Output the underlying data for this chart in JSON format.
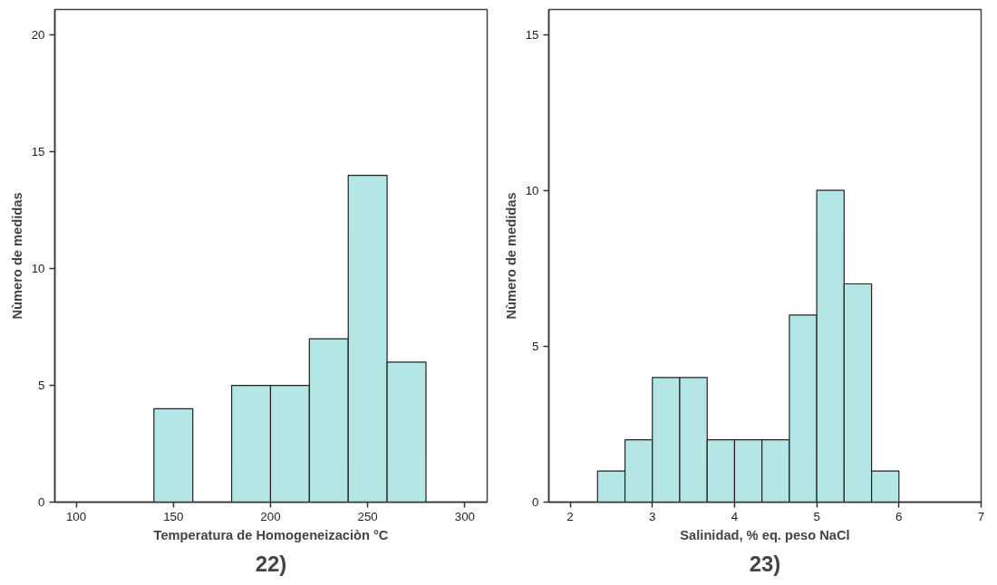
{
  "chart_data": [
    {
      "type": "histogram",
      "xlabel": "Temperatura de Homogeneizaciòn °C",
      "ylabel": "Nùmero de medidas",
      "annotations": [
        "22)"
      ],
      "bins": [
        140,
        160,
        180,
        200,
        220,
        240,
        260,
        280
      ],
      "values": [
        4,
        0,
        5,
        5,
        7,
        14,
        6
      ],
      "color": "#b4e6e6",
      "xlim": [
        89,
        311.5
      ],
      "xticks": [
        100,
        150,
        200,
        250,
        300
      ],
      "ylim": [
        0,
        21.1
      ],
      "yticks": [
        0,
        5,
        10,
        15,
        20
      ],
      "grid": false
    },
    {
      "type": "histogram",
      "xlabel": "Salinidad, % eq. peso NaCl",
      "ylabel": "Nùmero de medidas",
      "annotations": [
        "23)"
      ],
      "bins": [
        2.333,
        2.667,
        3,
        3.333,
        3.667,
        4,
        4.333,
        4.667,
        5,
        5.333,
        5.667,
        6
      ],
      "values": [
        1,
        2,
        4,
        4,
        2,
        2,
        2,
        6,
        10,
        7,
        1
      ],
      "color": "#b4e6e6",
      "xlim": [
        1.74,
        7.0
      ],
      "xticks": [
        2,
        3,
        4,
        5,
        6,
        7
      ],
      "ylim": [
        0,
        15.8
      ],
      "yticks": [
        0,
        5,
        10,
        15
      ],
      "grid": false
    }
  ]
}
